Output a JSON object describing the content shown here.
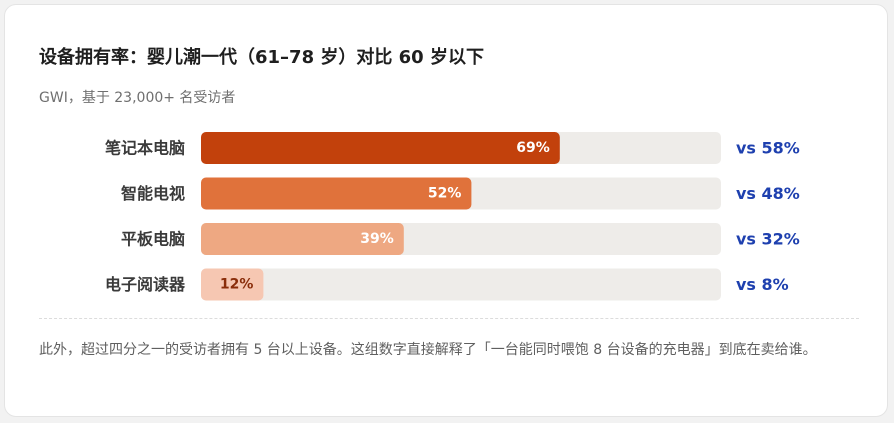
{
  "card": {
    "title": "设备拥有率：婴儿潮一代（61–78 岁）对比 60 岁以下",
    "subtitle": "GWI，基于 23,000+ 名受访者",
    "note": "此外，超过四分之一的受访者拥有 5 台以上设备。这组数字直接解释了「一台能同时喂饱 8 台设备的充电器」到底在卖给谁。"
  },
  "chart_data": {
    "type": "bar",
    "orientation": "horizontal",
    "categories": [
      "笔记本电脑",
      "智能电视",
      "平板电脑",
      "电子阅读器"
    ],
    "series": [
      {
        "values": [
          69,
          52,
          39,
          12
        ],
        "labels": [
          "69%",
          "52%",
          "39%",
          "12%"
        ]
      },
      {
        "values": [
          58,
          48,
          32,
          8
        ],
        "labels": [
          "vs 58%",
          "vs 48%",
          "vs 32%",
          "vs 8%"
        ]
      }
    ],
    "xlim": [
      0,
      100
    ],
    "grid": false,
    "colors": {
      "bars": [
        "#c2410c",
        "#e0723b",
        "#eea882",
        "#f6c7b2"
      ],
      "bar_labels": [
        "#ffffff",
        "#ffffff",
        "#ffffff",
        "#8a2d0a"
      ],
      "track": "#eeece9",
      "comparison": "#1e40af",
      "category": "#3a3a3a"
    }
  }
}
